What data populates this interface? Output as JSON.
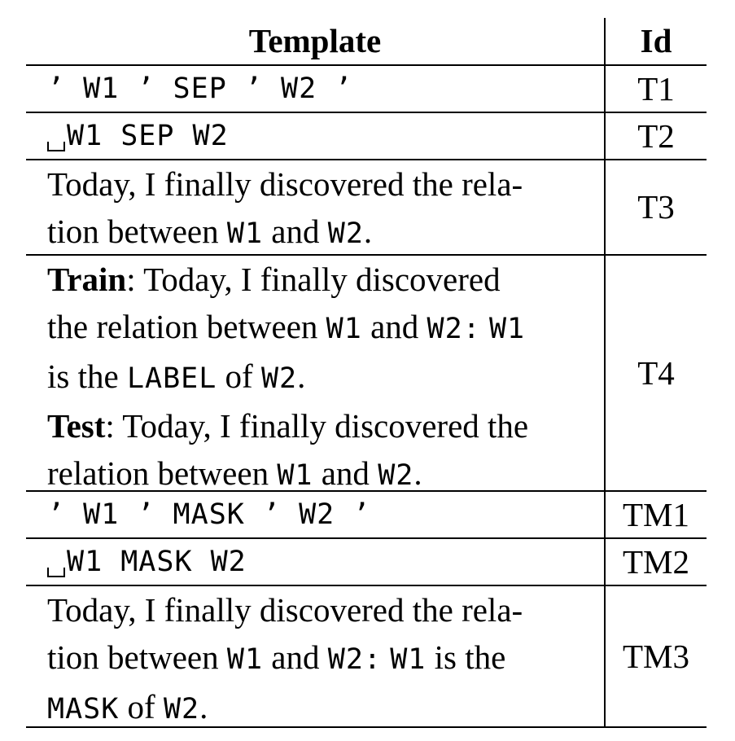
{
  "header": {
    "template": "Template",
    "id": "Id"
  },
  "rows": [
    {
      "id": "T1",
      "line1": {
        "q1": "’",
        "w1": "W1",
        "q2": "’",
        "sep": "SEP",
        "q3": "’",
        "w2": "W2",
        "q4": "’"
      }
    },
    {
      "id": "T2",
      "space_symbol": "␣",
      "w1": "W1",
      "sep": "SEP",
      "w2": "W2"
    },
    {
      "id": "T3",
      "line1": "Today, I finally discovered the rela-",
      "line2_a": "tion between",
      "line2_w1": "W1",
      "line2_b": "and",
      "line2_w2": "W2",
      "line2_c": "."
    },
    {
      "id": "T4",
      "train_label": "Train",
      "train_line1": ": Today, I finally discovered",
      "train_line2_a": "the relation between",
      "train_line2_w1": "W1",
      "train_line2_b": "and",
      "train_line2_w2": "W2:",
      "train_line2_w1b": "W1",
      "train_line3_a": "is the",
      "train_line3_label": "LABEL",
      "train_line3_b": "of",
      "train_line3_w2": "W2",
      "train_line3_c": ".",
      "test_label": "Test",
      "test_line1": ": Today, I finally discovered the",
      "test_line2_a": "relation between",
      "test_line2_w1": "W1",
      "test_line2_b": "and",
      "test_line2_w2": "W2",
      "test_line2_c": "."
    },
    {
      "id": "TM1",
      "line1": {
        "q1": "’",
        "w1": "W1",
        "q2": "’",
        "mask": "MASK",
        "q3": "’",
        "w2": "W2",
        "q4": "’"
      }
    },
    {
      "id": "TM2",
      "space_symbol": "␣",
      "w1": "W1",
      "mask": "MASK",
      "w2": "W2"
    },
    {
      "id": "TM3",
      "line1": "Today, I finally discovered the rela-",
      "line2_a": "tion between",
      "line2_w1": "W1",
      "line2_b": "and",
      "line2_w2": "W2:",
      "line2_w1b": "W1",
      "line2_c": "is the",
      "line3_mask": "MASK",
      "line3_a": "of",
      "line3_w2": "W2",
      "line3_b": "."
    }
  ]
}
